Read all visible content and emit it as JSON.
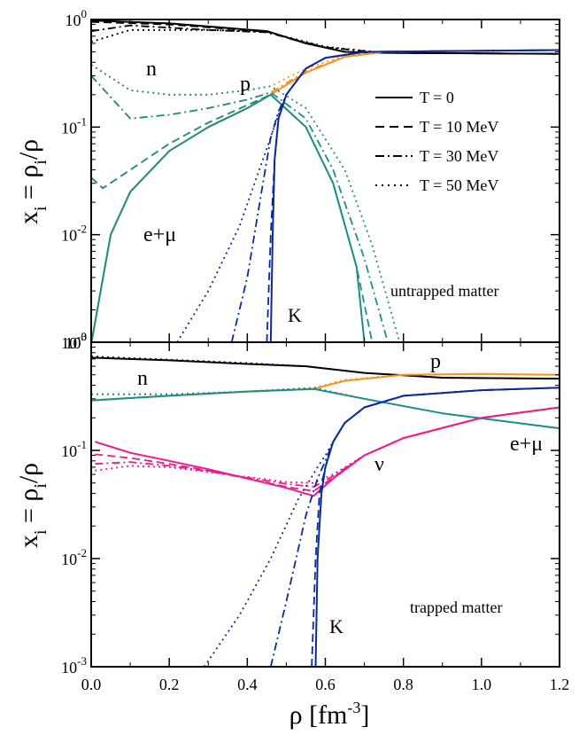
{
  "colors": {
    "n": "#000000",
    "p": "#f7931e",
    "e_mu": "#1b8e8a",
    "K": "#0a2a9c",
    "nu": "#ec1a8c",
    "frame": "#000000"
  },
  "legend": {
    "entries": [
      {
        "label": "T = 0",
        "dash": "solid"
      },
      {
        "label": "T = 10 MeV",
        "dash": "dash"
      },
      {
        "label": "T = 30 MeV",
        "dash": "dashdot"
      },
      {
        "label": "T = 50 MeV",
        "dash": "dot"
      }
    ]
  },
  "x_axis": {
    "label": "ρ [fm",
    "label_sup": "-3",
    "label_end": "]",
    "ticks": [
      "0.0",
      "0.2",
      "0.4",
      "0.6",
      "0.8",
      "1.0",
      "1.2"
    ]
  },
  "y_axis": {
    "label_main": "x",
    "label_sub": "i",
    "label_eq": " = ρ",
    "label_sub2": "i",
    "label_end": "/ρ",
    "tick_base": "10",
    "tick_exps": [
      "0",
      "-1",
      "-2",
      "-3"
    ],
    "top_exps": [
      "-1",
      "-2",
      "-3"
    ]
  },
  "panels": {
    "top": {
      "annotation": "untrapped matter",
      "labels": {
        "n": "n",
        "p": "p",
        "e_mu": "e+μ",
        "K": "K"
      }
    },
    "bottom": {
      "annotation": "trapped matter",
      "labels": {
        "n": "n",
        "p": "p",
        "e_mu": "e+μ",
        "nu": "ν",
        "K": "K"
      }
    }
  },
  "chart_data": [
    {
      "type": "line",
      "panel": "untrapped matter",
      "xlim": [
        0.0,
        1.2
      ],
      "ylim": [
        0.001,
        1
      ],
      "yscale": "log",
      "series": [
        {
          "name": "n",
          "T": 0,
          "x": [
            0.0,
            0.2,
            0.45,
            0.55,
            0.65,
            0.75,
            1.2
          ],
          "y": [
            0.98,
            0.92,
            0.78,
            0.6,
            0.5,
            0.49,
            0.48
          ]
        },
        {
          "name": "n",
          "T": 10,
          "x": [
            0.0,
            0.2,
            0.45,
            0.55,
            0.65,
            0.75,
            1.2
          ],
          "y": [
            0.95,
            0.9,
            0.77,
            0.6,
            0.5,
            0.49,
            0.48
          ]
        },
        {
          "name": "n",
          "T": 30,
          "x": [
            0.0,
            0.1,
            0.3,
            0.45,
            0.6,
            0.75,
            1.2
          ],
          "y": [
            0.78,
            0.88,
            0.8,
            0.76,
            0.55,
            0.49,
            0.48
          ]
        },
        {
          "name": "n",
          "T": 50,
          "x": [
            0.0,
            0.1,
            0.3,
            0.45,
            0.6,
            0.75,
            1.2
          ],
          "y": [
            0.62,
            0.8,
            0.8,
            0.77,
            0.56,
            0.49,
            0.48
          ]
        },
        {
          "name": "p",
          "T": 0,
          "x": [
            0.001,
            0.05,
            0.1,
            0.2,
            0.3,
            0.4,
            0.46,
            0.55,
            0.65,
            0.75,
            0.9,
            1.2
          ],
          "y": [
            0.001,
            0.01,
            0.025,
            0.06,
            0.1,
            0.15,
            0.2,
            0.32,
            0.45,
            0.5,
            0.51,
            0.52
          ]
        },
        {
          "name": "p",
          "T": 10,
          "x": [
            0.0,
            0.03,
            0.1,
            0.2,
            0.3,
            0.4,
            0.46,
            0.55,
            0.65,
            0.75,
            1.2
          ],
          "y": [
            0.034,
            0.027,
            0.04,
            0.07,
            0.11,
            0.16,
            0.2,
            0.32,
            0.45,
            0.5,
            0.52
          ]
        },
        {
          "name": "p",
          "T": 30,
          "x": [
            0.0,
            0.1,
            0.2,
            0.3,
            0.4,
            0.46,
            0.55,
            0.65,
            0.75,
            1.2
          ],
          "y": [
            0.3,
            0.12,
            0.13,
            0.15,
            0.18,
            0.21,
            0.33,
            0.45,
            0.5,
            0.52
          ]
        },
        {
          "name": "p",
          "T": 50,
          "x": [
            0.0,
            0.1,
            0.2,
            0.3,
            0.4,
            0.46,
            0.55,
            0.65,
            0.75,
            1.2
          ],
          "y": [
            0.38,
            0.22,
            0.2,
            0.2,
            0.22,
            0.24,
            0.35,
            0.46,
            0.5,
            0.52
          ]
        },
        {
          "name": "e+μ",
          "T": 0,
          "x": [
            0.001,
            0.05,
            0.1,
            0.2,
            0.3,
            0.4,
            0.46,
            0.55,
            0.62,
            0.68,
            0.7
          ],
          "y": [
            0.001,
            0.01,
            0.025,
            0.06,
            0.1,
            0.15,
            0.2,
            0.1,
            0.03,
            0.005,
            0.001
          ]
        },
        {
          "name": "e+μ",
          "T": 10,
          "x": [
            0.0,
            0.03,
            0.1,
            0.2,
            0.3,
            0.4,
            0.46,
            0.55,
            0.62,
            0.68,
            0.72
          ],
          "y": [
            0.034,
            0.027,
            0.04,
            0.07,
            0.11,
            0.16,
            0.2,
            0.1,
            0.03,
            0.005,
            0.001
          ]
        },
        {
          "name": "e+μ",
          "T": 30,
          "x": [
            0.0,
            0.1,
            0.2,
            0.3,
            0.4,
            0.46,
            0.55,
            0.62,
            0.7,
            0.76
          ],
          "y": [
            0.3,
            0.12,
            0.13,
            0.15,
            0.18,
            0.21,
            0.12,
            0.04,
            0.006,
            0.001
          ]
        },
        {
          "name": "e+μ",
          "T": 50,
          "x": [
            0.0,
            0.1,
            0.2,
            0.3,
            0.4,
            0.46,
            0.55,
            0.65,
            0.72,
            0.79
          ],
          "y": [
            0.38,
            0.22,
            0.2,
            0.2,
            0.22,
            0.24,
            0.15,
            0.04,
            0.008,
            0.001
          ]
        },
        {
          "name": "K",
          "T": 0,
          "x": [
            0.46,
            0.465,
            0.47,
            0.48,
            0.5,
            0.55,
            0.6,
            0.7,
            1.2
          ],
          "y": [
            0.001,
            0.01,
            0.05,
            0.12,
            0.2,
            0.35,
            0.44,
            0.5,
            0.52
          ]
        },
        {
          "name": "K",
          "T": 10,
          "x": [
            0.45,
            0.46,
            0.47,
            0.48,
            0.5,
            0.55,
            0.6,
            0.7,
            1.2
          ],
          "y": [
            0.001,
            0.01,
            0.05,
            0.12,
            0.2,
            0.35,
            0.44,
            0.5,
            0.52
          ]
        },
        {
          "name": "K",
          "T": 30,
          "x": [
            0.36,
            0.4,
            0.44,
            0.46,
            0.48,
            0.5,
            0.55,
            0.6,
            0.7,
            1.2
          ],
          "y": [
            0.001,
            0.004,
            0.03,
            0.08,
            0.14,
            0.2,
            0.35,
            0.44,
            0.5,
            0.52
          ]
        },
        {
          "name": "K",
          "T": 50,
          "x": [
            0.22,
            0.3,
            0.38,
            0.44,
            0.48,
            0.5,
            0.55,
            0.6,
            0.7,
            1.2
          ],
          "y": [
            0.001,
            0.003,
            0.012,
            0.05,
            0.13,
            0.2,
            0.35,
            0.44,
            0.5,
            0.52
          ]
        }
      ]
    },
    {
      "type": "line",
      "panel": "trapped matter",
      "xlim": [
        0.0,
        1.2
      ],
      "ylim": [
        0.001,
        1
      ],
      "yscale": "log",
      "series": [
        {
          "name": "n",
          "T": 0,
          "x": [
            0.0,
            0.2,
            0.4,
            0.55,
            0.7,
            0.9,
            1.2
          ],
          "y": [
            0.72,
            0.68,
            0.63,
            0.6,
            0.52,
            0.47,
            0.46
          ]
        },
        {
          "name": "n",
          "T": 50,
          "x": [
            0.0,
            0.2,
            0.4,
            0.55,
            0.7,
            0.9,
            1.2
          ],
          "y": [
            0.74,
            0.69,
            0.64,
            0.6,
            0.52,
            0.47,
            0.46
          ]
        },
        {
          "name": "p",
          "T": 0,
          "x": [
            0.0,
            0.2,
            0.4,
            0.57,
            0.65,
            0.8,
            1.0,
            1.2
          ],
          "y": [
            0.29,
            0.32,
            0.35,
            0.37,
            0.44,
            0.5,
            0.51,
            0.5
          ]
        },
        {
          "name": "p",
          "T": 50,
          "x": [
            0.0,
            0.2,
            0.4,
            0.57,
            0.65,
            0.8,
            1.0,
            1.2
          ],
          "y": [
            0.33,
            0.33,
            0.35,
            0.38,
            0.45,
            0.5,
            0.51,
            0.5
          ]
        },
        {
          "name": "e+μ",
          "T": 0,
          "x": [
            0.0,
            0.2,
            0.4,
            0.57,
            0.7,
            0.9,
            1.2
          ],
          "y": [
            0.29,
            0.32,
            0.35,
            0.37,
            0.3,
            0.22,
            0.16
          ]
        },
        {
          "name": "e+μ",
          "T": 50,
          "x": [
            0.0,
            0.2,
            0.4,
            0.57,
            0.7,
            0.9,
            1.2
          ],
          "y": [
            0.33,
            0.33,
            0.35,
            0.38,
            0.3,
            0.22,
            0.16
          ]
        },
        {
          "name": "ν",
          "T": 0,
          "x": [
            0.01,
            0.1,
            0.2,
            0.3,
            0.4,
            0.5,
            0.57,
            0.62,
            0.7,
            0.8,
            1.0,
            1.2
          ],
          "y": [
            0.12,
            0.095,
            0.08,
            0.067,
            0.055,
            0.045,
            0.038,
            0.055,
            0.09,
            0.13,
            0.2,
            0.25
          ]
        },
        {
          "name": "ν",
          "T": 10,
          "x": [
            0.01,
            0.1,
            0.2,
            0.3,
            0.4,
            0.5,
            0.57,
            0.62,
            0.7,
            0.8,
            1.0,
            1.2
          ],
          "y": [
            0.092,
            0.085,
            0.075,
            0.065,
            0.055,
            0.046,
            0.042,
            0.056,
            0.09,
            0.13,
            0.2,
            0.25
          ]
        },
        {
          "name": "ν",
          "T": 30,
          "x": [
            0.01,
            0.1,
            0.2,
            0.3,
            0.4,
            0.5,
            0.57,
            0.62,
            0.7,
            0.8,
            1.0,
            1.2
          ],
          "y": [
            0.075,
            0.078,
            0.072,
            0.064,
            0.056,
            0.049,
            0.046,
            0.058,
            0.09,
            0.13,
            0.2,
            0.25
          ]
        },
        {
          "name": "ν",
          "T": 50,
          "x": [
            0.01,
            0.1,
            0.2,
            0.3,
            0.4,
            0.5,
            0.57,
            0.62,
            0.7,
            0.8,
            1.0,
            1.2
          ],
          "y": [
            0.065,
            0.072,
            0.07,
            0.063,
            0.057,
            0.051,
            0.05,
            0.06,
            0.09,
            0.13,
            0.2,
            0.25
          ]
        },
        {
          "name": "K",
          "T": 0,
          "x": [
            0.575,
            0.58,
            0.59,
            0.6,
            0.62,
            0.65,
            0.7,
            0.8,
            1.0,
            1.2
          ],
          "y": [
            0.001,
            0.01,
            0.04,
            0.07,
            0.12,
            0.18,
            0.25,
            0.32,
            0.36,
            0.38
          ]
        },
        {
          "name": "K",
          "T": 10,
          "x": [
            0.565,
            0.575,
            0.585,
            0.6,
            0.62,
            0.65,
            0.7,
            0.8,
            1.0,
            1.2
          ],
          "y": [
            0.001,
            0.01,
            0.04,
            0.07,
            0.12,
            0.18,
            0.25,
            0.32,
            0.36,
            0.38
          ]
        },
        {
          "name": "K",
          "T": 30,
          "x": [
            0.46,
            0.5,
            0.55,
            0.58,
            0.6,
            0.62,
            0.65,
            0.7,
            0.8,
            1.0,
            1.2
          ],
          "y": [
            0.001,
            0.004,
            0.025,
            0.055,
            0.08,
            0.12,
            0.18,
            0.25,
            0.32,
            0.36,
            0.38
          ]
        },
        {
          "name": "K",
          "T": 50,
          "x": [
            0.29,
            0.38,
            0.46,
            0.53,
            0.58,
            0.6,
            0.62,
            0.65,
            0.7,
            0.8,
            1.0,
            1.2
          ],
          "y": [
            0.001,
            0.003,
            0.01,
            0.035,
            0.07,
            0.09,
            0.12,
            0.18,
            0.25,
            0.32,
            0.36,
            0.38
          ]
        }
      ]
    }
  ]
}
